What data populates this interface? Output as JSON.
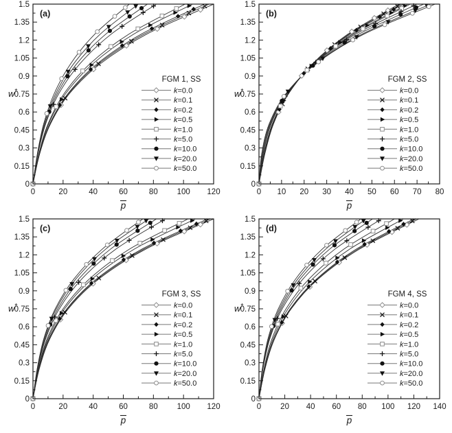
{
  "figure": {
    "ylabel": "w*",
    "xlabel": "p̄",
    "y_tick_labels": [
      "0",
      "0.15",
      "0.3",
      "0.45",
      "0.6",
      "0.75",
      "0.9",
      "1.05",
      "1.2",
      "1.35",
      "1.5"
    ],
    "colors": {
      "curve": "#2e2e2e",
      "marker_fill": "#111111",
      "open_marker_stroke": "#8c8c8c",
      "open_marker_fill": "#ffffff",
      "legend_line": "#777777",
      "axis": "#1a1a1a",
      "text": "#1a1a1a",
      "background": "#ffffff"
    }
  },
  "chart_data": [
    {
      "type": "line",
      "panel_label": "(a)",
      "legend_title": "FGM 1, SS",
      "xlabel": "p̄",
      "ylabel": "w*",
      "xlim": [
        0,
        120
      ],
      "ylim": [
        0,
        1.5
      ],
      "xtick_major": 20,
      "xtick_minor": 10,
      "ytick_major": 0.15,
      "x_tick_labels": [
        "0",
        "20",
        "40",
        "60",
        "80",
        "100",
        "120"
      ],
      "legend_position": "right-center",
      "grid": false,
      "w_samples": [
        0,
        0.25,
        0.5,
        0.75,
        1.0,
        1.25,
        1.5
      ],
      "series": [
        {
          "label": "k=0.0",
          "marker": "diamond-open",
          "p": [
            0,
            4.4,
            11.6,
            24.0,
            44.5,
            75.6,
            120
          ]
        },
        {
          "label": "k=0.1",
          "marker": "x-cross",
          "p": [
            0,
            4.4,
            11.3,
            23.5,
            43.4,
            73.8,
            117
          ]
        },
        {
          "label": "k=0.2",
          "marker": "diamond-filled",
          "p": [
            0,
            4.3,
            11.1,
            23.0,
            42.4,
            72.0,
            114
          ]
        },
        {
          "label": "k=0.5",
          "marker": "triangle-right",
          "p": [
            0,
            4.1,
            10.4,
            21.5,
            39.6,
            67.0,
            106
          ]
        },
        {
          "label": "k=1.0",
          "marker": "square-open",
          "p": [
            0,
            3.9,
            10.0,
            20.5,
            37.7,
            63.8,
            101
          ]
        },
        {
          "label": "k=5.0",
          "marker": "plus",
          "p": [
            0,
            3.3,
            8.4,
            17.0,
            31.0,
            52.0,
            82
          ]
        },
        {
          "label": "k=10.0",
          "marker": "circle-filled",
          "p": [
            0,
            3.2,
            8.0,
            16.0,
            28.9,
            48.4,
            76
          ]
        },
        {
          "label": "k=20.0",
          "marker": "triangle-down",
          "p": [
            0,
            3.0,
            7.5,
            15.0,
            26.9,
            44.7,
            70
          ]
        },
        {
          "label": "k=50.0",
          "marker": "circle-open",
          "p": [
            0,
            2.9,
            7.1,
            14.0,
            24.9,
            41.1,
            64
          ]
        }
      ]
    },
    {
      "type": "line",
      "panel_label": "(b)",
      "legend_title": "FGM 2, SS",
      "xlabel": "p̄",
      "ylabel": "w*",
      "xlim": [
        0,
        80
      ],
      "ylim": [
        0,
        1.5
      ],
      "xtick_major": 10,
      "xtick_minor": 5,
      "ytick_major": 0.15,
      "x_tick_labels": [
        "0",
        "10",
        "20",
        "30",
        "40",
        "50",
        "60",
        "70",
        "80"
      ],
      "legend_position": "right-center",
      "grid": false,
      "w_samples": [
        0,
        0.25,
        0.5,
        0.75,
        1.0,
        1.25,
        1.5
      ],
      "series": [
        {
          "label": "k=0.0",
          "marker": "diamond-open",
          "p": [
            0,
            2.6,
            6.4,
            13.0,
            23.6,
            39.4,
            62
          ]
        },
        {
          "label": "k=0.1",
          "marker": "x-cross",
          "p": [
            0,
            2.5,
            6.4,
            13.0,
            23.7,
            39.9,
            63
          ]
        },
        {
          "label": "k=0.2",
          "marker": "diamond-filled",
          "p": [
            0,
            2.4,
            6.2,
            12.9,
            23.8,
            40.4,
            64
          ]
        },
        {
          "label": "k=0.5",
          "marker": "triangle-right",
          "p": [
            0,
            2.3,
            6.0,
            12.8,
            24.1,
            41.3,
            66
          ]
        },
        {
          "label": "k=1.0",
          "marker": "square-open",
          "p": [
            0,
            2.2,
            5.9,
            12.7,
            24.1,
            42.0,
            67
          ]
        },
        {
          "label": "k=5.0",
          "marker": "plus",
          "p": [
            0,
            1.9,
            5.4,
            12.3,
            24.3,
            42.9,
            70
          ]
        },
        {
          "label": "k=10.0",
          "marker": "circle-filled",
          "p": [
            0,
            1.7,
            5.1,
            12.2,
            24.7,
            44.3,
            73
          ]
        },
        {
          "label": "k=20.0",
          "marker": "triangle-down",
          "p": [
            0,
            1.4,
            4.8,
            12.0,
            25.0,
            45.7,
            76
          ]
        },
        {
          "label": "k=50.0",
          "marker": "circle-open",
          "p": [
            0,
            1.2,
            4.5,
            11.8,
            25.1,
            46.5,
            78
          ]
        }
      ]
    },
    {
      "type": "line",
      "panel_label": "(c)",
      "legend_title": "FGM 3, SS",
      "xlabel": "p̄",
      "ylabel": "w*",
      "xlim": [
        0,
        120
      ],
      "ylim": [
        0,
        1.5
      ],
      "xtick_major": 20,
      "xtick_minor": 10,
      "ytick_major": 0.15,
      "x_tick_labels": [
        "0",
        "20",
        "40",
        "60",
        "80",
        "100",
        "120"
      ],
      "legend_position": "right-center",
      "grid": false,
      "w_samples": [
        0,
        0.25,
        0.5,
        0.75,
        1.0,
        1.25,
        1.5
      ],
      "series": [
        {
          "label": "k=0.0",
          "marker": "diamond-open",
          "p": [
            0,
            4.2,
            11.2,
            23.5,
            43.9,
            75.2,
            120
          ]
        },
        {
          "label": "k=0.1",
          "marker": "x-cross",
          "p": [
            0,
            4.1,
            11.0,
            23.0,
            43.1,
            73.9,
            118
          ]
        },
        {
          "label": "k=0.2",
          "marker": "diamond-filled",
          "p": [
            0,
            4.0,
            10.6,
            22.5,
            42.3,
            72.6,
            116
          ]
        },
        {
          "label": "k=0.5",
          "marker": "triangle-right",
          "p": [
            0,
            3.7,
            10.0,
            21.0,
            39.4,
            67.6,
            108
          ]
        },
        {
          "label": "k=1.0",
          "marker": "square-open",
          "p": [
            0,
            3.6,
            9.4,
            20.0,
            37.6,
            64.4,
            103
          ]
        },
        {
          "label": "k=5.0",
          "marker": "plus",
          "p": [
            0,
            3.2,
            8.4,
            17.5,
            32.5,
            55.3,
            88
          ]
        },
        {
          "label": "k=10.0",
          "marker": "circle-filled",
          "p": [
            0,
            3.1,
            8.0,
            16.5,
            30.5,
            51.7,
            82
          ]
        },
        {
          "label": "k=20.0",
          "marker": "triangle-down",
          "p": [
            0,
            2.9,
            7.5,
            15.5,
            28.6,
            48.5,
            77
          ]
        },
        {
          "label": "k=50.0",
          "marker": "circle-open",
          "p": [
            0,
            2.8,
            7.2,
            14.8,
            27.3,
            46.2,
            73
          ]
        }
      ]
    },
    {
      "type": "line",
      "panel_label": "(d)",
      "legend_title": "FGM 4, SS",
      "xlabel": "p̄",
      "ylabel": "w*",
      "xlim": [
        0,
        140
      ],
      "ylim": [
        0,
        1.5
      ],
      "xtick_major": 20,
      "xtick_minor": 10,
      "ytick_major": 0.15,
      "x_tick_labels": [
        "0",
        "20",
        "40",
        "60",
        "80",
        "100",
        "120",
        "140"
      ],
      "legend_position": "right-center",
      "grid": false,
      "w_samples": [
        0,
        0.25,
        0.5,
        0.75,
        1.0,
        1.25,
        1.5
      ],
      "series": [
        {
          "label": "k=0.0",
          "marker": "diamond-open",
          "p": [
            0,
            4.7,
            12.1,
            25.0,
            46.1,
            78.2,
            124
          ]
        },
        {
          "label": "k=0.1",
          "marker": "x-cross",
          "p": [
            0,
            4.6,
            11.9,
            24.6,
            45.4,
            77.0,
            122
          ]
        },
        {
          "label": "k=0.2",
          "marker": "diamond-filled",
          "p": [
            0,
            4.5,
            11.7,
            24.2,
            44.8,
            75.7,
            120
          ]
        },
        {
          "label": "k=0.5",
          "marker": "triangle-right",
          "p": [
            0,
            4.2,
            11.0,
            22.5,
            41.6,
            70.6,
            112
          ]
        },
        {
          "label": "k=1.0",
          "marker": "square-open",
          "p": [
            0,
            3.9,
            10.1,
            21.0,
            38.9,
            66.1,
            105
          ]
        },
        {
          "label": "k=5.0",
          "marker": "plus",
          "p": [
            0,
            3.1,
            8.4,
            18.0,
            34.2,
            59.1,
            95
          ]
        },
        {
          "label": "k=10.0",
          "marker": "circle-filled",
          "p": [
            0,
            3.0,
            8.0,
            17.0,
            32.0,
            55.0,
            88
          ]
        },
        {
          "label": "k=20.0",
          "marker": "triangle-down",
          "p": [
            0,
            2.8,
            7.5,
            16.0,
            30.2,
            51.9,
            83
          ]
        },
        {
          "label": "k=50.0",
          "marker": "circle-open",
          "p": [
            0,
            2.6,
            7.0,
            15.0,
            28.5,
            49.2,
            79
          ]
        }
      ]
    }
  ]
}
